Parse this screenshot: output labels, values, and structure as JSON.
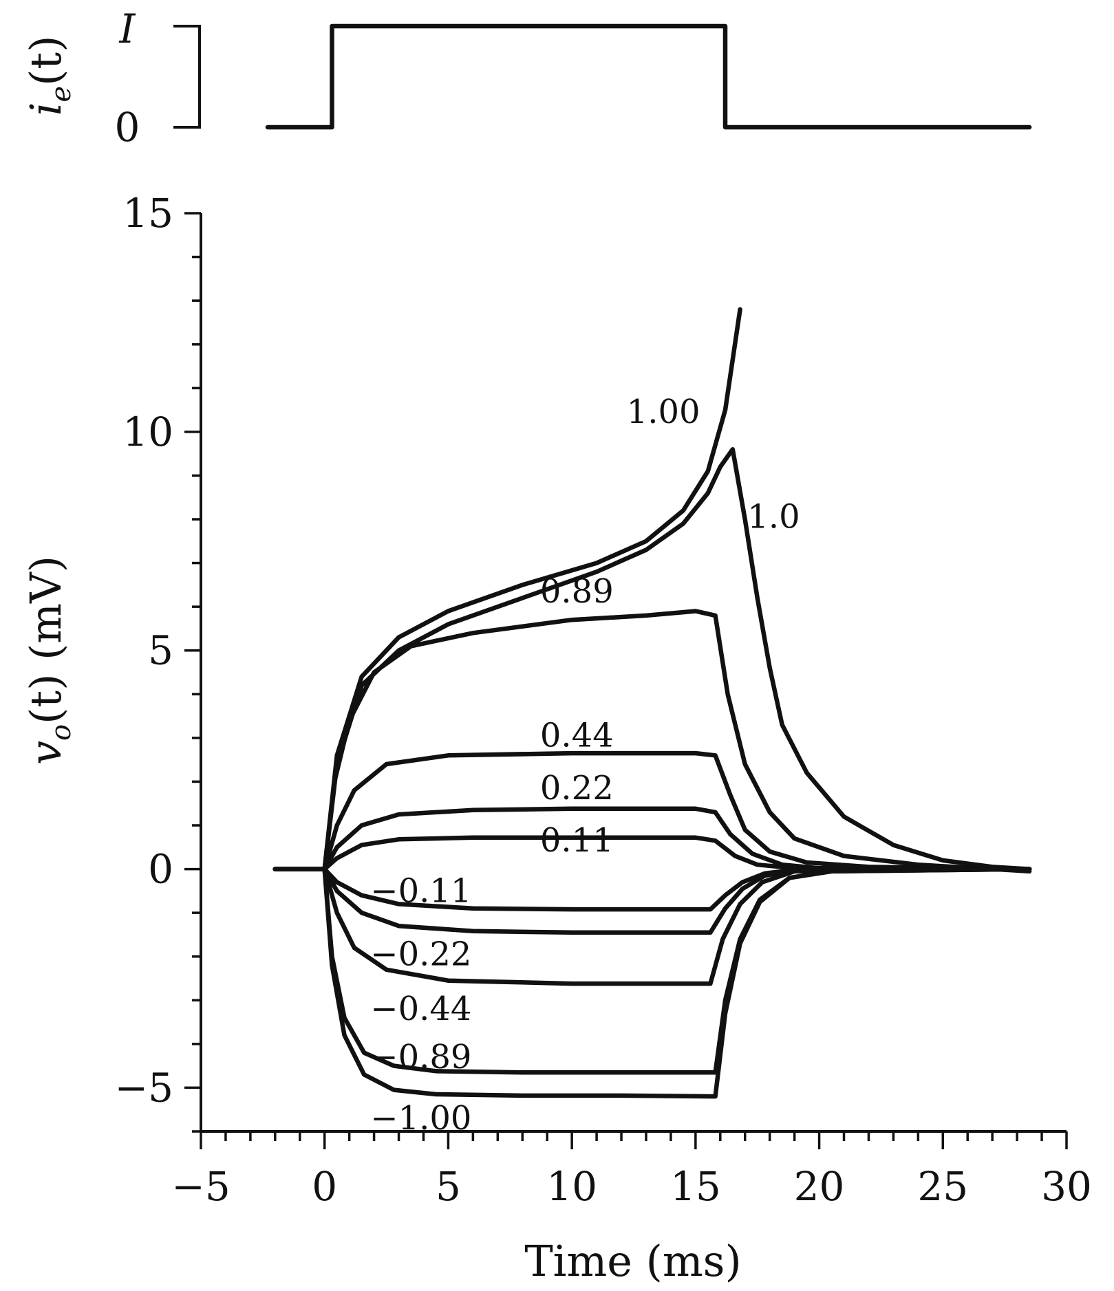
{
  "chart_data": [
    {
      "type": "line",
      "title": "",
      "ylabel": "i_e(t)",
      "ylabel_parts": {
        "main": "i",
        "sub": "e",
        "rest": "(t)"
      },
      "y_tick_labels": [
        "0",
        "I"
      ],
      "xlim": [
        -5,
        30
      ],
      "series": [
        {
          "x": [
            -2.3,
            0.3,
            0.3,
            16.2,
            16.2,
            28.5
          ],
          "y": [
            0,
            0,
            1,
            1,
            0,
            0
          ]
        }
      ]
    },
    {
      "type": "line",
      "title": "",
      "xlabel": "Time (ms)",
      "ylabel": "v_o(t) (mV)",
      "ylabel_parts": {
        "main": "v",
        "sub": "o",
        "rest": "(t)  (mV)"
      },
      "xlim": [
        -5,
        30
      ],
      "ylim": [
        -6,
        15
      ],
      "x_ticks": [
        -5,
        0,
        5,
        10,
        15,
        20,
        25,
        30
      ],
      "x_tick_labels": [
        "−5",
        "0",
        "5",
        "10",
        "15",
        "20",
        "25",
        "30"
      ],
      "y_ticks": [
        -5,
        0,
        5,
        10,
        15
      ],
      "y_tick_labels": [
        "−5",
        "0",
        "5",
        "10",
        "15"
      ],
      "grid": false,
      "series": [
        {
          "label": "1.00",
          "x": [
            -2,
            0,
            0.5,
            1.5,
            3,
            5,
            8,
            11,
            13,
            14.5,
            15.5,
            16.2,
            16.8
          ],
          "y": [
            0,
            0,
            2.6,
            4.4,
            5.3,
            5.9,
            6.5,
            7.0,
            7.5,
            8.2,
            9.1,
            10.5,
            12.8
          ]
        },
        {
          "label": "1.0",
          "x": [
            -2,
            0,
            0.5,
            1.5,
            3,
            5,
            8,
            11,
            13,
            14.5,
            15.5,
            16.0,
            16.5,
            17.0,
            17.5,
            18.0,
            18.5,
            19.5,
            21,
            23,
            25,
            27,
            28.5
          ],
          "y": [
            0,
            0,
            2.4,
            4.2,
            5.0,
            5.6,
            6.2,
            6.8,
            7.3,
            7.9,
            8.6,
            9.2,
            9.6,
            8.0,
            6.2,
            4.6,
            3.3,
            2.2,
            1.2,
            0.55,
            0.2,
            0.05,
            0
          ]
        },
        {
          "label": "0.89",
          "x": [
            -2,
            0,
            0.4,
            1,
            2,
            3.5,
            6,
            10,
            13,
            15,
            15.8,
            16.3,
            17,
            18,
            19,
            21,
            24,
            28.5
          ],
          "y": [
            0,
            0,
            2.0,
            3.4,
            4.5,
            5.1,
            5.4,
            5.7,
            5.8,
            5.9,
            5.8,
            4.0,
            2.4,
            1.3,
            0.7,
            0.3,
            0.1,
            -0.05
          ]
        },
        {
          "label": "0.44",
          "x": [
            -2,
            0,
            0.5,
            1.2,
            2.5,
            5,
            10,
            15,
            15.8,
            16.4,
            17,
            18,
            19.5,
            22,
            28.5
          ],
          "y": [
            0,
            0,
            1.0,
            1.8,
            2.4,
            2.6,
            2.65,
            2.65,
            2.6,
            1.7,
            0.9,
            0.4,
            0.15,
            0.05,
            0
          ]
        },
        {
          "label": "0.22",
          "x": [
            -2,
            0,
            0.5,
            1.5,
            3,
            6,
            10,
            15,
            15.8,
            16.4,
            17.3,
            18.5,
            20,
            28.5
          ],
          "y": [
            0,
            0,
            0.5,
            1.0,
            1.25,
            1.35,
            1.38,
            1.38,
            1.3,
            0.8,
            0.35,
            0.1,
            0.02,
            0
          ]
        },
        {
          "label": "0.11",
          "x": [
            -2,
            0,
            0.5,
            1.5,
            3,
            6,
            10,
            15,
            15.8,
            16.6,
            17.5,
            19,
            28.5
          ],
          "y": [
            0,
            0,
            0.25,
            0.55,
            0.68,
            0.72,
            0.72,
            0.72,
            0.65,
            0.3,
            0.1,
            0.02,
            0
          ]
        },
        {
          "label": "−0.11",
          "x": [
            -2,
            0,
            0.5,
            1.5,
            3,
            6,
            10,
            15.6,
            16.2,
            16.9,
            17.8,
            19,
            28.5
          ],
          "y": [
            0,
            0,
            -0.3,
            -0.6,
            -0.8,
            -0.9,
            -0.92,
            -0.92,
            -0.6,
            -0.3,
            -0.1,
            -0.02,
            0
          ]
        },
        {
          "label": "−0.22",
          "x": [
            -2,
            0,
            0.5,
            1.5,
            3,
            6,
            10,
            15.6,
            16.2,
            16.9,
            17.8,
            19,
            28.5
          ],
          "y": [
            0,
            0,
            -0.5,
            -1.0,
            -1.3,
            -1.42,
            -1.45,
            -1.45,
            -0.9,
            -0.45,
            -0.15,
            -0.03,
            0
          ]
        },
        {
          "label": "−0.44",
          "x": [
            -2,
            0,
            0.5,
            1.2,
            2.5,
            5,
            10,
            15.6,
            16.1,
            16.8,
            17.7,
            19,
            28.5
          ],
          "y": [
            0,
            0,
            -1.0,
            -1.8,
            -2.3,
            -2.55,
            -2.62,
            -2.62,
            -1.6,
            -0.8,
            -0.3,
            -0.05,
            0
          ]
        },
        {
          "label": "−0.89",
          "x": [
            -2,
            0,
            0.3,
            0.8,
            1.6,
            2.8,
            4.5,
            8,
            12,
            15.8,
            16.2,
            16.8,
            17.6,
            18.8,
            20.5,
            28.5
          ],
          "y": [
            0,
            0,
            -2.0,
            -3.4,
            -4.2,
            -4.5,
            -4.62,
            -4.65,
            -4.65,
            -4.65,
            -3.0,
            -1.6,
            -0.7,
            -0.2,
            -0.05,
            0
          ]
        },
        {
          "label": "−1.00",
          "x": [
            -2,
            0,
            0.3,
            0.8,
            1.6,
            2.8,
            4.5,
            8,
            12,
            15.8,
            16.2,
            16.8,
            17.6,
            18.8,
            20.5,
            28.5
          ],
          "y": [
            0,
            0,
            -2.2,
            -3.8,
            -4.7,
            -5.05,
            -5.15,
            -5.18,
            -5.18,
            -5.2,
            -3.3,
            -1.7,
            -0.75,
            -0.2,
            -0.05,
            0
          ]
        }
      ]
    }
  ]
}
